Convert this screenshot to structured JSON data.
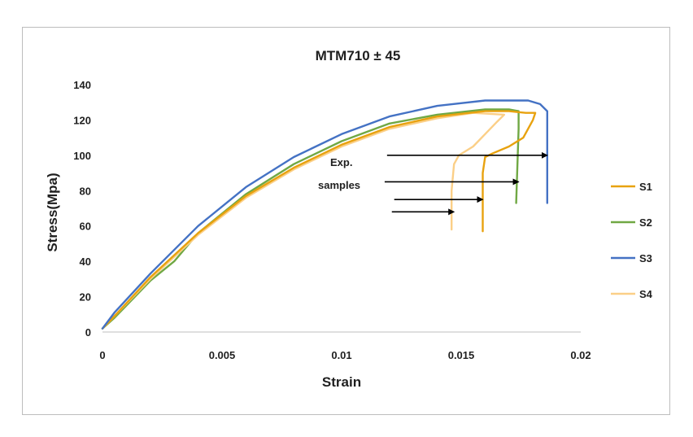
{
  "chart_data": {
    "type": "line",
    "title": "MTM710 ± 45",
    "xlabel": "Strain",
    "ylabel": "Stress(Mpa)",
    "xlim": [
      0,
      0.02
    ],
    "ylim": [
      0,
      140
    ],
    "xticks": [
      0,
      0.005,
      0.01,
      0.015,
      0.02
    ],
    "xtick_labels": [
      "0",
      "0.005",
      "0.01",
      "0.015",
      "0.02"
    ],
    "yticks": [
      0,
      20,
      40,
      60,
      80,
      100,
      120,
      140
    ],
    "ytick_labels": [
      "0",
      "20",
      "40",
      "60",
      "80",
      "100",
      "120",
      "140"
    ],
    "grid": false,
    "legend": "right",
    "annotation": {
      "line1": "Exp.",
      "line2": "samples"
    },
    "arrows": [
      {
        "from": [
          0.0119,
          100
        ],
        "to": [
          0.0186,
          100
        ]
      },
      {
        "from": [
          0.0118,
          85
        ],
        "to": [
          0.0174,
          85
        ]
      },
      {
        "from": [
          0.0122,
          75
        ],
        "to": [
          0.0159,
          75
        ]
      },
      {
        "from": [
          0.0121,
          68
        ],
        "to": [
          0.0147,
          68
        ]
      }
    ],
    "series": [
      {
        "name": "S1",
        "color": "#E8A20F",
        "points": [
          [
            0,
            2
          ],
          [
            0.0005,
            9
          ],
          [
            0.002,
            31
          ],
          [
            0.004,
            56
          ],
          [
            0.006,
            77
          ],
          [
            0.008,
            93
          ],
          [
            0.01,
            106
          ],
          [
            0.012,
            116
          ],
          [
            0.014,
            122
          ],
          [
            0.016,
            125
          ],
          [
            0.017,
            125
          ],
          [
            0.0177,
            124
          ],
          [
            0.0181,
            124
          ],
          [
            0.018,
            120
          ],
          [
            0.0176,
            110
          ],
          [
            0.017,
            105
          ],
          [
            0.0163,
            101
          ],
          [
            0.016,
            99
          ],
          [
            0.0159,
            90
          ],
          [
            0.0159,
            57
          ]
        ]
      },
      {
        "name": "S2",
        "color": "#70A844",
        "points": [
          [
            0,
            2
          ],
          [
            0.0005,
            8
          ],
          [
            0.002,
            29
          ],
          [
            0.003,
            40
          ],
          [
            0.004,
            56
          ],
          [
            0.006,
            78
          ],
          [
            0.008,
            95
          ],
          [
            0.01,
            108
          ],
          [
            0.012,
            118
          ],
          [
            0.014,
            123
          ],
          [
            0.016,
            126
          ],
          [
            0.017,
            126
          ],
          [
            0.0174,
            125
          ],
          [
            0.0174,
            115
          ],
          [
            0.0173,
            73
          ]
        ]
      },
      {
        "name": "S3",
        "color": "#4472C4",
        "points": [
          [
            0,
            2
          ],
          [
            0.0005,
            11
          ],
          [
            0.002,
            33
          ],
          [
            0.004,
            60
          ],
          [
            0.006,
            82
          ],
          [
            0.008,
            99
          ],
          [
            0.01,
            112
          ],
          [
            0.012,
            122
          ],
          [
            0.014,
            128
          ],
          [
            0.016,
            131
          ],
          [
            0.0178,
            131
          ],
          [
            0.0183,
            129
          ],
          [
            0.0186,
            125
          ],
          [
            0.0186,
            100
          ],
          [
            0.0186,
            73
          ]
        ]
      },
      {
        "name": "S4",
        "color": "#FBCF87",
        "points": [
          [
            0,
            2
          ],
          [
            0.0005,
            9
          ],
          [
            0.002,
            30
          ],
          [
            0.004,
            55
          ],
          [
            0.006,
            76
          ],
          [
            0.008,
            92
          ],
          [
            0.01,
            105
          ],
          [
            0.012,
            115
          ],
          [
            0.014,
            121
          ],
          [
            0.0155,
            124
          ],
          [
            0.0168,
            123
          ],
          [
            0.0165,
            119
          ],
          [
            0.016,
            112
          ],
          [
            0.0155,
            105
          ],
          [
            0.0149,
            100
          ],
          [
            0.0147,
            95
          ],
          [
            0.0146,
            80
          ],
          [
            0.0146,
            58
          ]
        ]
      }
    ]
  }
}
